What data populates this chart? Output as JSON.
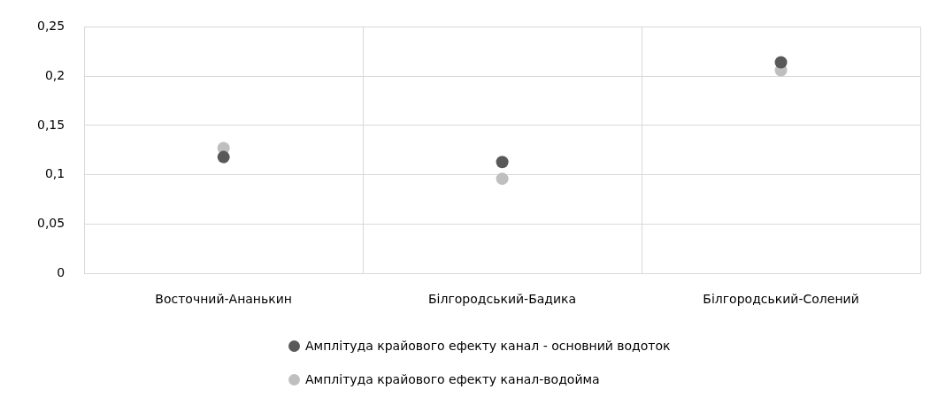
{
  "chart_data": {
    "type": "scatter",
    "categories": [
      "Восточний-Ананькин",
      "Білгородський-Бадика",
      "Білгородський-Солений"
    ],
    "series": [
      {
        "name": "Амплітуда крайового ефекту канал - основний водоток",
        "color": "#595959",
        "values": [
          0.118,
          0.113,
          0.214
        ]
      },
      {
        "name": "Амплітуда крайового ефекту канал-водойма",
        "color": "#bfbfbf",
        "values": [
          0.127,
          0.096,
          0.206
        ]
      }
    ],
    "ylim": [
      0,
      0.25
    ],
    "yticks": [
      {
        "value": 0,
        "label": "0"
      },
      {
        "value": 0.05,
        "label": "0,05"
      },
      {
        "value": 0.1,
        "label": "0,1"
      },
      {
        "value": 0.15,
        "label": "0,15"
      },
      {
        "value": 0.2,
        "label": "0,2"
      },
      {
        "value": 0.25,
        "label": "0,25"
      }
    ],
    "grid": true,
    "legend": "bottom",
    "marker": "circle"
  }
}
